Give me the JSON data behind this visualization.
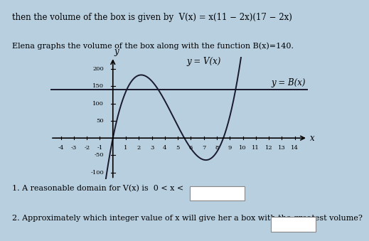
{
  "title_line1": "then the volume of the box is given by  V(x) = x(11 − 2x)(17 − 2x)",
  "subtitle": "Elena graphs the volume of the box along with the function B(x)=140.",
  "xlabel": "x",
  "ylabel": "y",
  "xlim": [
    -4.8,
    15.0
  ],
  "ylim": [
    -120,
    235
  ],
  "xticks": [
    -4,
    -3,
    -2,
    -1,
    1,
    2,
    3,
    4,
    5,
    6,
    7,
    8,
    9,
    10,
    11,
    12,
    13,
    14
  ],
  "yticks": [
    -100,
    -50,
    50,
    100,
    150,
    200
  ],
  "V_label": "y = V(x)",
  "B_label": "y = B(x)",
  "B_value": 140,
  "curve_color": "#1a1a2e",
  "Bline_color": "#1a1a2e",
  "bg_color": "#b8cfe0",
  "text_color": "#000000",
  "q1_text": "1. A reasonable domain for V(x) is  0 < x <",
  "q2_text": "2. Approximately which integer value of x will give her a box with the greatest volume?",
  "font_size": 8.5
}
